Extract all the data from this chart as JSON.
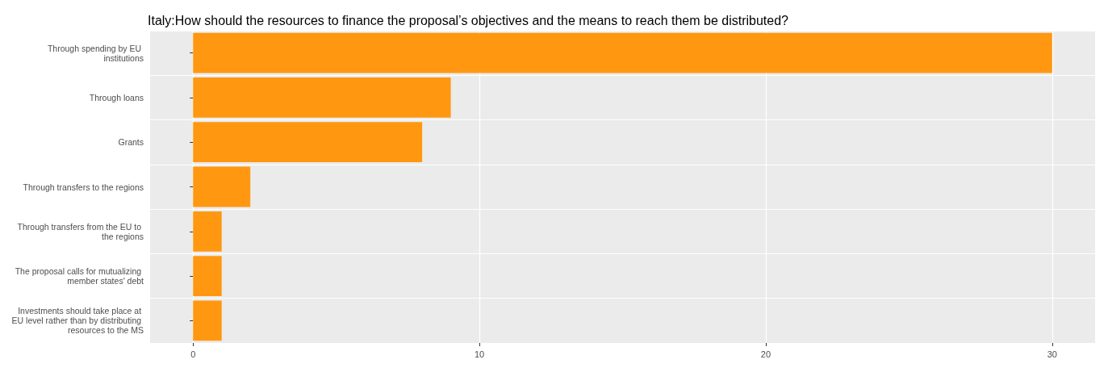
{
  "chart_data": {
    "type": "bar",
    "orientation": "horizontal",
    "title": "Italy:How should the resources to finance the proposal’s objectives and the means to reach them be distributed?",
    "categories": [
      "Through spending by EU institutions",
      "Through loans",
      "Grants",
      "Through transfers to the regions",
      "Through transfers from the EU to the regions",
      "The proposal calls for mutualizing member states' debt",
      "Investments should take place at EU level rather than by distributing resources to the MS"
    ],
    "values": [
      30,
      9,
      8,
      2,
      1,
      1,
      1
    ],
    "color": "#ff9810",
    "xlim": [
      -1.5,
      31.5
    ],
    "xticks": [
      0,
      10,
      20,
      30
    ],
    "grid": true
  }
}
